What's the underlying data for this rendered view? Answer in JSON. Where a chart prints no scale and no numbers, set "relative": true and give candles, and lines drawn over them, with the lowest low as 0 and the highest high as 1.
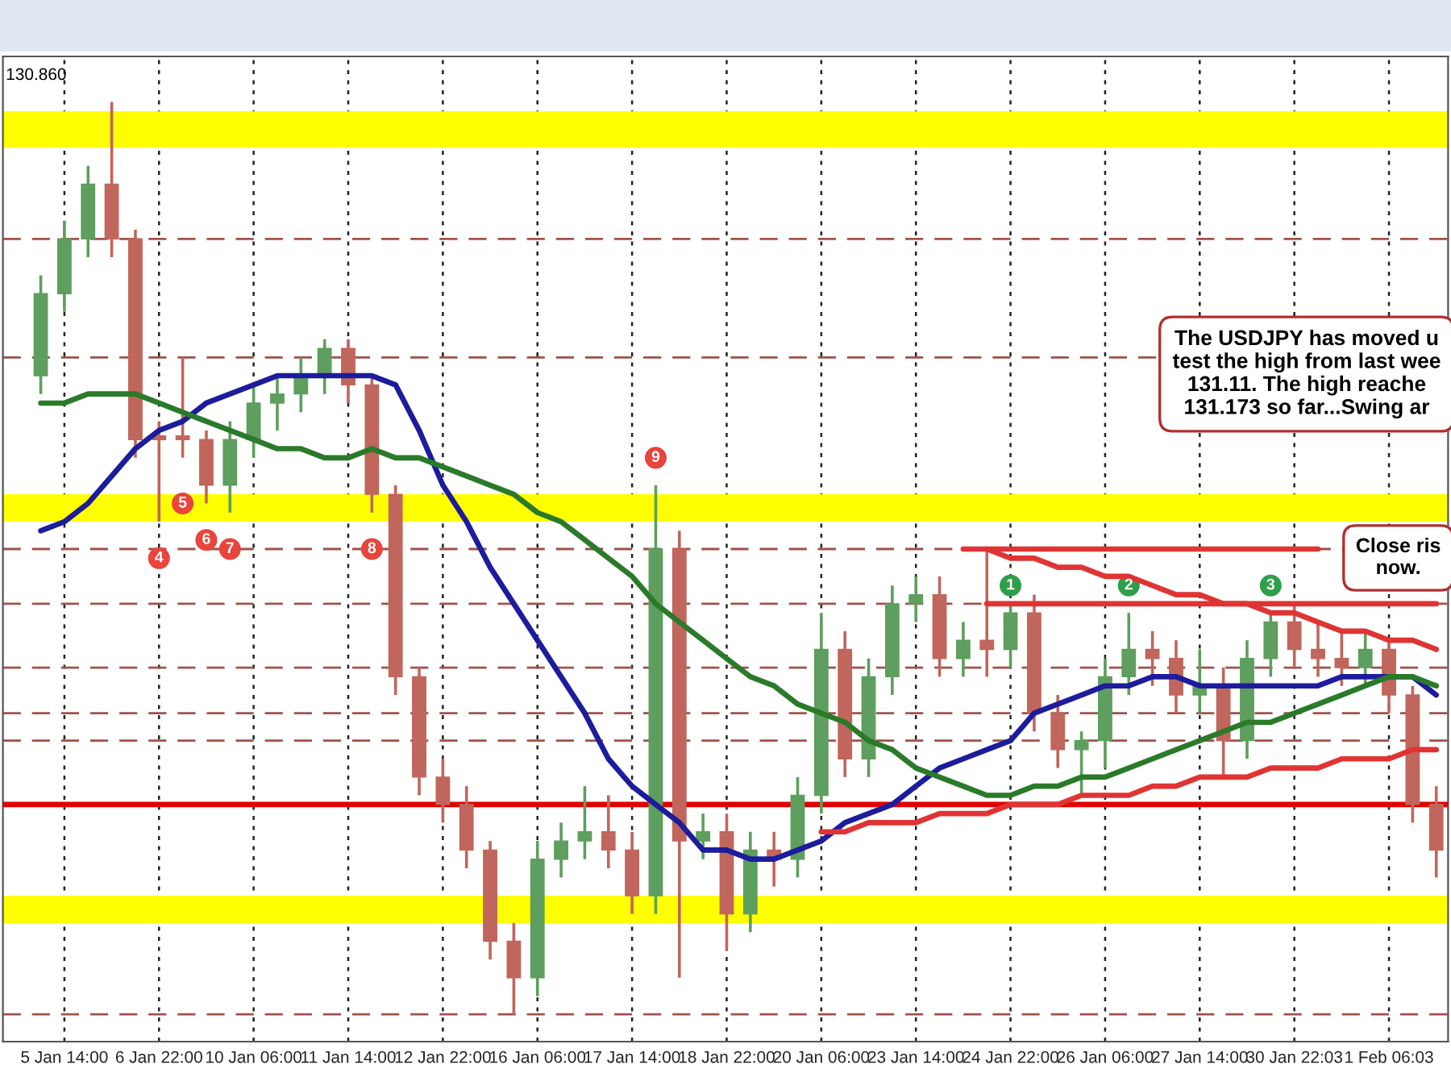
{
  "chart_data": {
    "type": "candlestick",
    "relative": true,
    "grid": "x",
    "categories": [
      null,
      "5 Jan 14:00",
      null,
      null,
      null,
      "6 Jan 22:00",
      null,
      null,
      null,
      "10 Jan 06:00",
      null,
      null,
      null,
      "11 Jan 14:00",
      null,
      null,
      null,
      "12 Jan 22:00",
      null,
      null,
      null,
      "16 Jan 06:00",
      null,
      null,
      null,
      "17 Jan 14:00",
      null,
      null,
      null,
      "18 Jan 22:00",
      null,
      null,
      null,
      "20 Jan 06:00",
      null,
      null,
      null,
      "23 Jan 14:00",
      null,
      null,
      null,
      "24 Jan 22:00",
      null,
      null,
      null,
      "26 Jan 06:00",
      null,
      null,
      null,
      "27 Jan 14:00",
      null,
      null,
      null,
      "30 Jan 22:03",
      null,
      null,
      null,
      "1 Feb 06:03",
      null,
      null
    ],
    "ohlc": [
      [
        0.7,
        0.81,
        0.68,
        0.79
      ],
      [
        0.79,
        0.87,
        0.77,
        0.85
      ],
      [
        0.85,
        0.93,
        0.83,
        0.91
      ],
      [
        0.91,
        1.0,
        0.83,
        0.85
      ],
      [
        0.85,
        0.86,
        0.61,
        0.63
      ],
      [
        0.63,
        0.65,
        0.54,
        0.63
      ],
      [
        0.63,
        0.72,
        0.61,
        0.63
      ],
      [
        0.63,
        0.64,
        0.56,
        0.58
      ],
      [
        0.58,
        0.65,
        0.55,
        0.63
      ],
      [
        0.63,
        0.69,
        0.61,
        0.67
      ],
      [
        0.67,
        0.7,
        0.64,
        0.68
      ],
      [
        0.68,
        0.72,
        0.66,
        0.7
      ],
      [
        0.7,
        0.74,
        0.68,
        0.73
      ],
      [
        0.73,
        0.74,
        0.67,
        0.69
      ],
      [
        0.69,
        0.7,
        0.55,
        0.57
      ],
      [
        0.57,
        0.58,
        0.35,
        0.37
      ],
      [
        0.37,
        0.38,
        0.24,
        0.26
      ],
      [
        0.26,
        0.28,
        0.21,
        0.23
      ],
      [
        0.23,
        0.25,
        0.16,
        0.18
      ],
      [
        0.18,
        0.19,
        0.06,
        0.08
      ],
      [
        0.08,
        0.1,
        0.0,
        0.04
      ],
      [
        0.04,
        0.19,
        0.02,
        0.17
      ],
      [
        0.17,
        0.21,
        0.15,
        0.19
      ],
      [
        0.19,
        0.25,
        0.17,
        0.2
      ],
      [
        0.2,
        0.24,
        0.16,
        0.18
      ],
      [
        0.18,
        0.2,
        0.11,
        0.13
      ],
      [
        0.13,
        0.58,
        0.11,
        0.51
      ],
      [
        0.51,
        0.53,
        0.04,
        0.19
      ],
      [
        0.19,
        0.22,
        0.17,
        0.2
      ],
      [
        0.2,
        0.22,
        0.07,
        0.11
      ],
      [
        0.11,
        0.2,
        0.09,
        0.18
      ],
      [
        0.18,
        0.2,
        0.14,
        0.17
      ],
      [
        0.17,
        0.26,
        0.15,
        0.24
      ],
      [
        0.24,
        0.44,
        0.22,
        0.4
      ],
      [
        0.4,
        0.42,
        0.26,
        0.28
      ],
      [
        0.28,
        0.39,
        0.26,
        0.37
      ],
      [
        0.37,
        0.47,
        0.35,
        0.45
      ],
      [
        0.45,
        0.48,
        0.43,
        0.46
      ],
      [
        0.46,
        0.48,
        0.37,
        0.39
      ],
      [
        0.39,
        0.43,
        0.37,
        0.41
      ],
      [
        0.41,
        0.51,
        0.37,
        0.4
      ],
      [
        0.4,
        0.45,
        0.38,
        0.44
      ],
      [
        0.44,
        0.46,
        0.31,
        0.33
      ],
      [
        0.33,
        0.35,
        0.27,
        0.29
      ],
      [
        0.29,
        0.31,
        0.24,
        0.3
      ],
      [
        0.3,
        0.39,
        0.27,
        0.37
      ],
      [
        0.37,
        0.44,
        0.35,
        0.4
      ],
      [
        0.4,
        0.42,
        0.36,
        0.39
      ],
      [
        0.39,
        0.41,
        0.33,
        0.35
      ],
      [
        0.35,
        0.4,
        0.33,
        0.36
      ],
      [
        0.36,
        0.38,
        0.26,
        0.3
      ],
      [
        0.3,
        0.41,
        0.28,
        0.39
      ],
      [
        0.39,
        0.44,
        0.37,
        0.43
      ],
      [
        0.43,
        0.45,
        0.38,
        0.4
      ],
      [
        0.4,
        0.43,
        0.37,
        0.39
      ],
      [
        0.39,
        0.42,
        0.36,
        0.38
      ],
      [
        0.38,
        0.42,
        0.36,
        0.4
      ],
      [
        0.4,
        0.41,
        0.33,
        0.35
      ],
      [
        0.35,
        0.36,
        0.21,
        0.23
      ],
      [
        0.23,
        0.25,
        0.15,
        0.18
      ]
    ],
    "colors": [
      "#5e9e5e",
      "#5e9e5e",
      "#5e9e5e",
      "#c0665c",
      "#c0665c",
      "#c0665c",
      "#c0665c",
      "#c0665c",
      "#5e9e5e",
      "#5e9e5e",
      "#5e9e5e",
      "#5e9e5e",
      "#5e9e5e",
      "#c0665c",
      "#c0665c",
      "#c0665c",
      "#c0665c",
      "#c0665c",
      "#c0665c",
      "#c0665c",
      "#c0665c",
      "#5e9e5e",
      "#5e9e5e",
      "#5e9e5e",
      "#c0665c",
      "#c0665c",
      "#5e9e5e",
      "#c0665c",
      "#5e9e5e",
      "#c0665c",
      "#5e9e5e",
      "#c0665c",
      "#5e9e5e",
      "#5e9e5e",
      "#c0665c",
      "#5e9e5e",
      "#5e9e5e",
      "#5e9e5e",
      "#c0665c",
      "#5e9e5e",
      "#c0665c",
      "#5e9e5e",
      "#c0665c",
      "#c0665c",
      "#5e9e5e",
      "#5e9e5e",
      "#5e9e5e",
      "#c0665c",
      "#c0665c",
      "#5e9e5e",
      "#c0665c",
      "#5e9e5e",
      "#5e9e5e",
      "#c0665c",
      "#c0665c",
      "#c0665c",
      "#5e9e5e",
      "#c0665c",
      "#c0665c",
      "#c0665c"
    ],
    "series": [
      {
        "type": "line",
        "color": "#1c1c9c",
        "values": [
          0.53,
          0.54,
          0.56,
          0.59,
          0.62,
          0.64,
          0.65,
          0.67,
          0.68,
          0.69,
          0.7,
          0.7,
          0.7,
          0.7,
          0.7,
          0.69,
          0.64,
          0.58,
          0.54,
          0.49,
          0.45,
          0.41,
          0.37,
          0.33,
          0.28,
          0.25,
          0.23,
          0.21,
          0.18,
          0.18,
          0.17,
          0.17,
          0.18,
          0.19,
          0.21,
          0.22,
          0.23,
          0.25,
          0.27,
          0.28,
          0.29,
          0.3,
          0.33,
          0.34,
          0.35,
          0.36,
          0.36,
          0.37,
          0.37,
          0.36,
          0.36,
          0.36,
          0.36,
          0.36,
          0.36,
          0.37,
          0.37,
          0.37,
          0.37,
          0.35
        ]
      },
      {
        "type": "line",
        "color": "#2a7a2a",
        "values": [
          0.67,
          0.67,
          0.68,
          0.68,
          0.68,
          0.67,
          0.66,
          0.65,
          0.64,
          0.63,
          0.62,
          0.62,
          0.61,
          0.61,
          0.62,
          0.61,
          0.61,
          0.6,
          0.59,
          0.58,
          0.57,
          0.55,
          0.54,
          0.52,
          0.5,
          0.48,
          0.45,
          0.43,
          0.41,
          0.39,
          0.37,
          0.36,
          0.34,
          0.33,
          0.32,
          0.3,
          0.29,
          0.27,
          0.26,
          0.25,
          0.24,
          0.24,
          0.25,
          0.25,
          0.26,
          0.26,
          0.27,
          0.28,
          0.29,
          0.3,
          0.31,
          0.32,
          0.32,
          0.33,
          0.34,
          0.35,
          0.36,
          0.37,
          0.37,
          0.36
        ]
      },
      {
        "type": "line",
        "color": "#e03434",
        "values": [
          null,
          null,
          null,
          null,
          null,
          null,
          null,
          null,
          null,
          null,
          null,
          null,
          null,
          null,
          null,
          null,
          null,
          null,
          null,
          null,
          null,
          null,
          null,
          null,
          null,
          null,
          null,
          null,
          null,
          null,
          null,
          null,
          null,
          null,
          null,
          null,
          null,
          null,
          null,
          0.51,
          0.51,
          0.51,
          0.51,
          0.51,
          0.51,
          0.51,
          0.51,
          0.51,
          0.51,
          0.51,
          0.51,
          0.51,
          0.51,
          0.51,
          0.51,
          null,
          null,
          null,
          null,
          null
        ]
      },
      {
        "type": "line",
        "color": "#e03434",
        "values": [
          null,
          null,
          null,
          null,
          null,
          null,
          null,
          null,
          null,
          null,
          null,
          null,
          null,
          null,
          null,
          null,
          null,
          null,
          null,
          null,
          null,
          null,
          null,
          null,
          null,
          null,
          null,
          null,
          null,
          null,
          null,
          null,
          null,
          null,
          null,
          null,
          null,
          null,
          null,
          null,
          0.51,
          0.5,
          0.5,
          0.49,
          0.49,
          0.48,
          0.48,
          0.47,
          0.46,
          0.46,
          0.45,
          0.45,
          0.44,
          0.44,
          0.43,
          0.42,
          0.42,
          0.41,
          0.41,
          0.4
        ]
      },
      {
        "type": "line",
        "color": "#e03434",
        "values": [
          null,
          null,
          null,
          null,
          null,
          null,
          null,
          null,
          null,
          null,
          null,
          null,
          null,
          null,
          null,
          null,
          null,
          null,
          null,
          null,
          null,
          null,
          null,
          null,
          null,
          null,
          null,
          null,
          null,
          null,
          null,
          null,
          null,
          null,
          null,
          null,
          null,
          null,
          null,
          null,
          0.45,
          0.45,
          0.45,
          0.45,
          0.45,
          0.45,
          0.45,
          0.45,
          0.45,
          0.45,
          0.45,
          0.45,
          0.45,
          0.45,
          0.45,
          0.45,
          0.45,
          0.45,
          0.45,
          0.45
        ]
      },
      {
        "type": "line",
        "color": "#e03434",
        "values": [
          null,
          null,
          null,
          null,
          null,
          null,
          null,
          null,
          null,
          null,
          null,
          null,
          null,
          null,
          null,
          null,
          null,
          null,
          null,
          null,
          null,
          null,
          null,
          null,
          null,
          null,
          null,
          null,
          null,
          null,
          null,
          null,
          null,
          0.2,
          0.2,
          0.21,
          0.21,
          0.21,
          0.22,
          0.22,
          0.22,
          0.23,
          0.23,
          0.23,
          0.24,
          0.24,
          0.24,
          0.25,
          0.25,
          0.26,
          0.26,
          0.26,
          0.27,
          0.27,
          0.27,
          0.28,
          0.28,
          0.28,
          0.29,
          0.29
        ]
      },
      {
        "type": "scatter",
        "marker": "circle",
        "color": "#e8453c",
        "values": [
          null,
          null,
          null,
          null,
          null,
          0.5,
          0.56,
          0.52,
          0.51,
          null,
          null,
          null,
          null,
          null,
          0.51,
          null,
          null,
          null,
          null,
          null,
          null,
          null,
          null,
          null,
          null,
          null,
          0.61,
          null,
          null,
          null,
          null,
          null,
          null,
          null,
          null,
          null,
          null,
          null,
          null,
          null,
          null,
          null,
          null,
          null,
          null,
          null,
          null,
          null,
          null,
          null,
          null,
          null,
          null,
          null,
          null,
          null,
          null,
          null,
          null,
          null
        ]
      },
      {
        "type": "scatter",
        "marker": "circle",
        "color": "#2e9e4a",
        "values": [
          null,
          null,
          null,
          null,
          null,
          null,
          null,
          null,
          null,
          null,
          null,
          null,
          null,
          null,
          null,
          null,
          null,
          null,
          null,
          null,
          null,
          null,
          null,
          null,
          null,
          null,
          null,
          null,
          null,
          null,
          null,
          null,
          null,
          null,
          null,
          null,
          null,
          null,
          null,
          null,
          null,
          0.47,
          null,
          null,
          null,
          null,
          0.47,
          null,
          null,
          null,
          null,
          null,
          0.47,
          null,
          null,
          null,
          null,
          null,
          null,
          null
        ]
      }
    ],
    "bands": [
      {
        "axis": "y",
        "from": 0.95,
        "to": 0.99,
        "color": "#ffff00"
      },
      {
        "axis": "y",
        "from": 0.54,
        "to": 0.57,
        "color": "#ffff00"
      },
      {
        "axis": "y",
        "from": 0.1,
        "to": 0.13,
        "color": "#ffff00"
      }
    ],
    "ref_lines": [
      {
        "axis": "y",
        "value": 0.23,
        "color": "#e00000",
        "line_style": "solid"
      },
      {
        "axis": "y",
        "value": 0.85,
        "color": "#a0524a",
        "line_style": "dashed"
      },
      {
        "axis": "y",
        "value": 0.72,
        "color": "#a0524a",
        "line_style": "dashed"
      },
      {
        "axis": "y",
        "value": 0.51,
        "color": "#a0524a",
        "line_style": "dashed"
      },
      {
        "axis": "y",
        "value": 0.45,
        "color": "#a0524a",
        "line_style": "dashed"
      },
      {
        "axis": "y",
        "value": 0.38,
        "color": "#a0524a",
        "line_style": "dashed"
      },
      {
        "axis": "y",
        "value": 0.33,
        "color": "#a0524a",
        "line_style": "dashed"
      },
      {
        "axis": "y",
        "value": 0.3,
        "color": "#a0524a",
        "line_style": "dashed"
      },
      {
        "axis": "y",
        "value": 0.0,
        "color": "#a0524a",
        "line_style": "dashed"
      }
    ],
    "annotations": [
      "130.860",
      "The USDJPY has moved u\ntest the high from last wee\n131.11. The high reache\n131.173 so far...Swing ar",
      "Close ris\nnow.",
      {
        "text": "4",
        "y": 0.5
      },
      {
        "text": "5",
        "y": 0.56
      },
      {
        "text": "6",
        "y": 0.52
      },
      {
        "text": "7",
        "y": 0.51
      },
      {
        "text": "8",
        "y": 0.51
      },
      {
        "text": "9",
        "y": 0.61
      },
      {
        "text": "1",
        "y": 0.47
      },
      {
        "text": "2",
        "y": 0.47
      },
      {
        "text": "3",
        "y": 0.47
      }
    ]
  }
}
